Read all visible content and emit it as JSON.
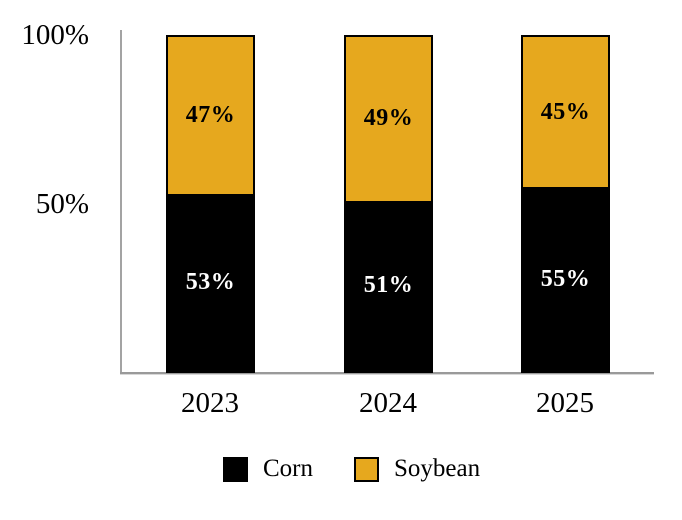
{
  "chart_data": {
    "type": "bar",
    "subtype": "stacked-100-percent",
    "title": "",
    "xlabel": "",
    "ylabel": "",
    "categories": [
      "2023",
      "2024",
      "2025"
    ],
    "series": [
      {
        "name": "Corn",
        "color": "#000000",
        "label_color": "#ffffff",
        "values": [
          53,
          51,
          55
        ]
      },
      {
        "name": "Soybean",
        "color": "#e6a81e",
        "label_color": "#000000",
        "values": [
          47,
          49,
          45
        ]
      }
    ],
    "value_suffix": "%",
    "y_ticks": [
      {
        "label": "100%",
        "value": 100
      },
      {
        "label": "50%",
        "value": 50
      }
    ],
    "ylim": [
      0,
      100
    ],
    "grid": false,
    "legend_position": "bottom",
    "axis_color": "#a3a3a3"
  }
}
